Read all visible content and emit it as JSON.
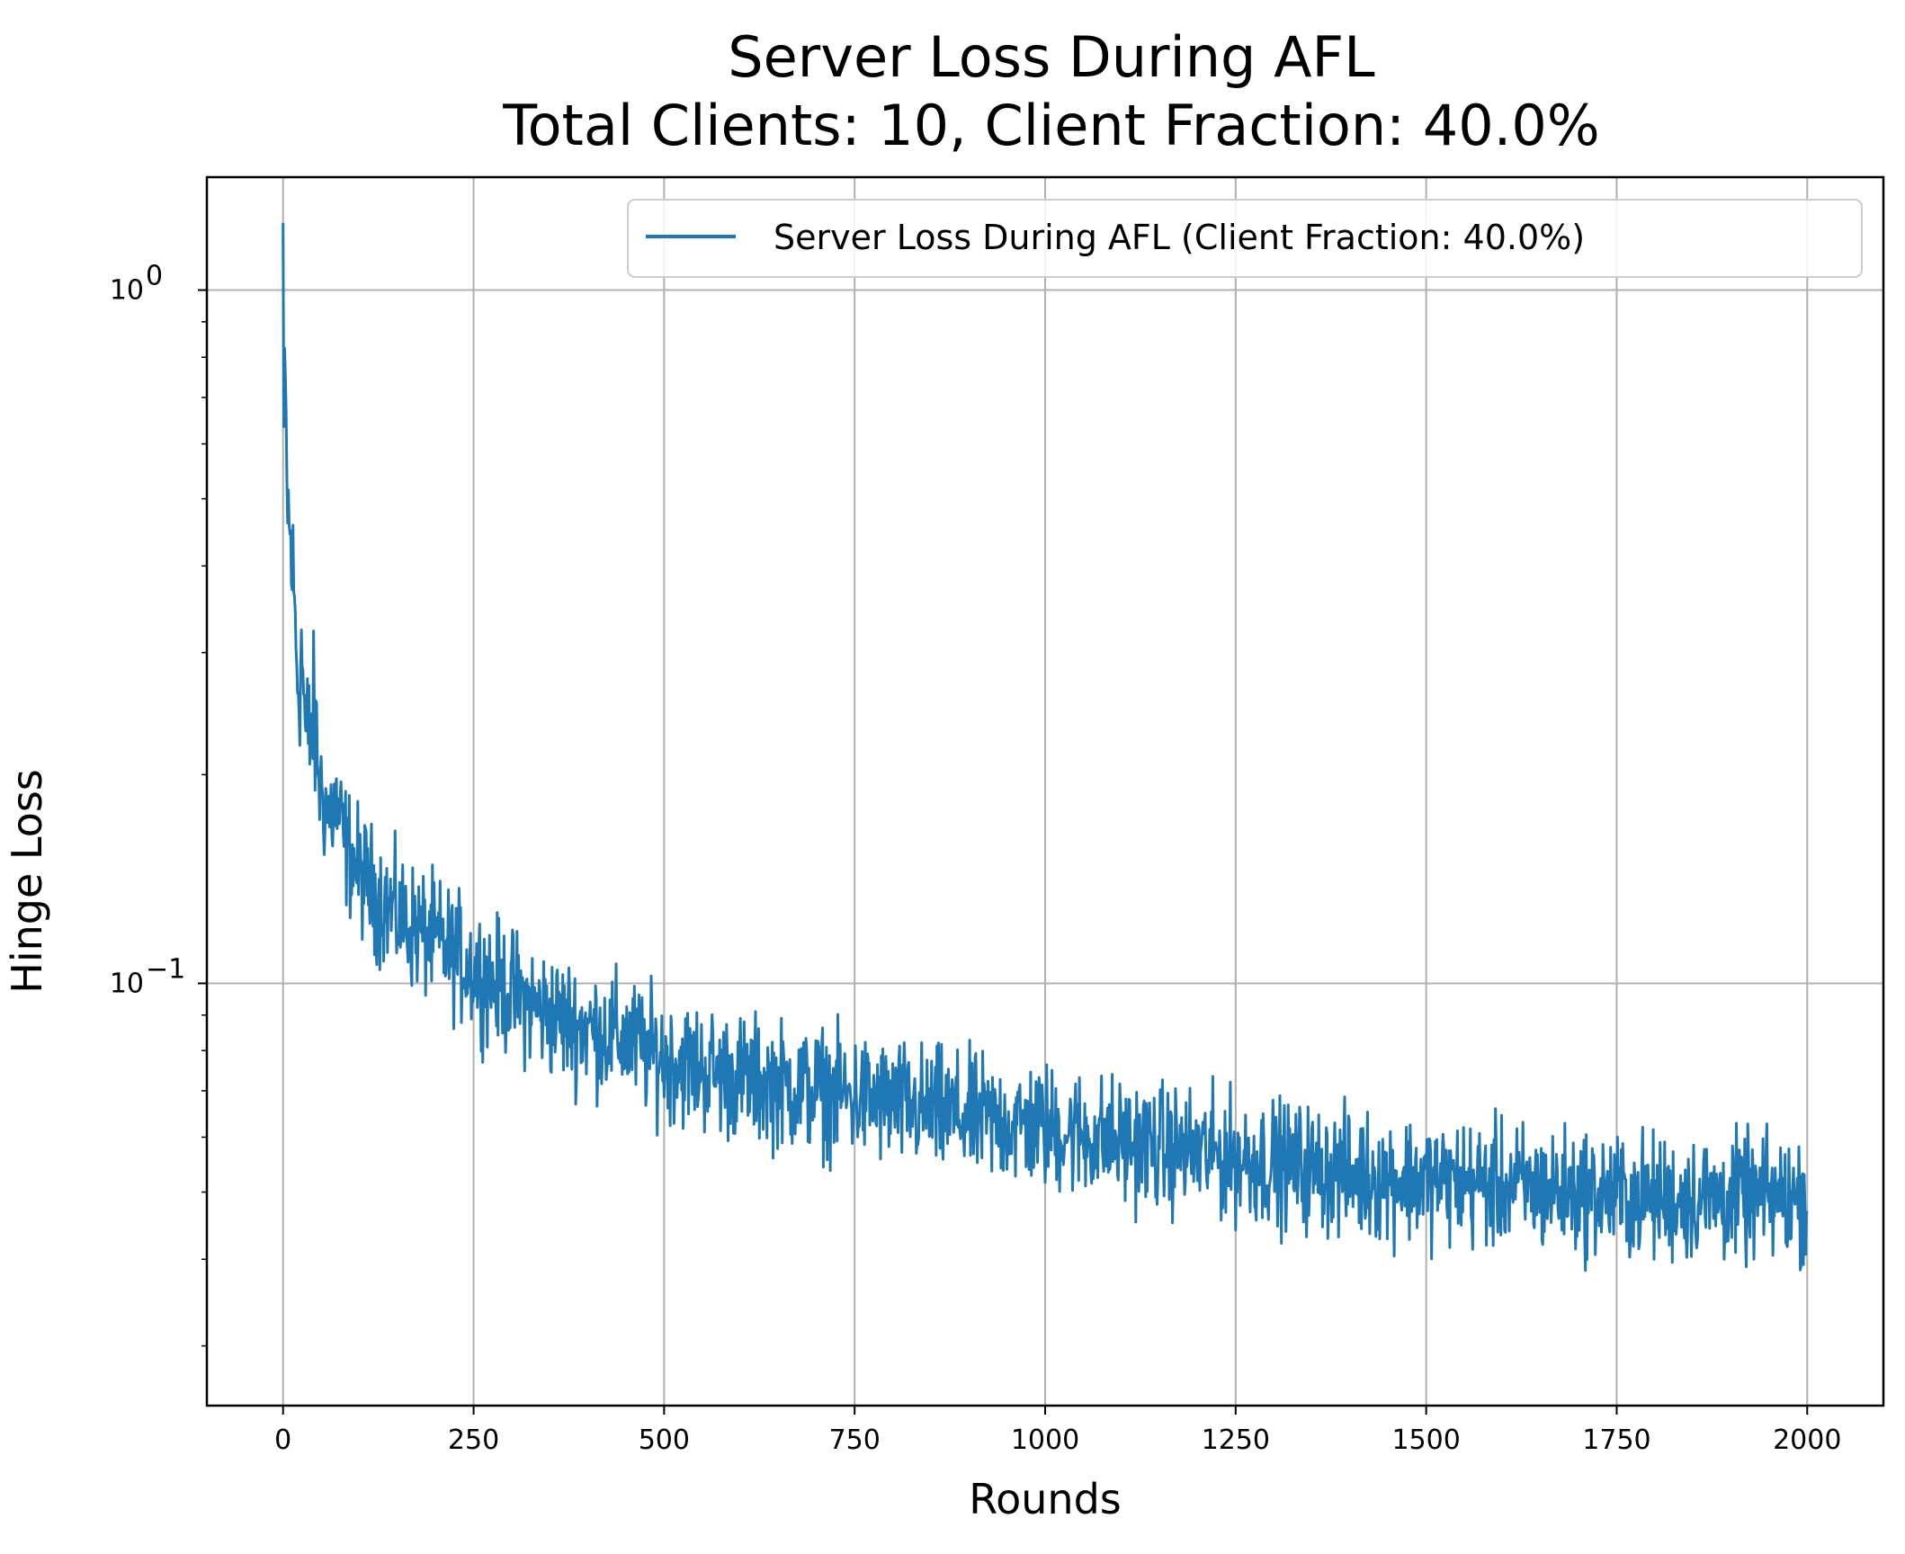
{
  "chart_data": {
    "type": "line",
    "title": "Server Loss During AFL",
    "subtitle": "Total Clients: 10, Client Fraction: 40.0%",
    "xlabel": "Rounds",
    "ylabel": "Hinge Loss",
    "xlim": [
      -100,
      2100
    ],
    "ylim": [
      0.0246,
      1.455
    ],
    "yscale": "log",
    "grid": true,
    "legend_position": "top-right",
    "x_ticks": [
      0,
      250,
      500,
      750,
      1000,
      1250,
      1500,
      1750,
      2000
    ],
    "y_ticks": [
      {
        "value": 1.0,
        "base": "10",
        "exp": "0"
      },
      {
        "value": 0.1,
        "base": "10",
        "exp": "−1"
      }
    ],
    "line_color": "#1f77b4",
    "series": [
      {
        "name": "Server Loss During AFL (Client Fraction: 40.0%)",
        "rounds": 2001,
        "points": [
          [
            0,
            1.25
          ],
          [
            1,
            0.62
          ],
          [
            3,
            0.7
          ],
          [
            5,
            0.52
          ],
          [
            8,
            0.45
          ],
          [
            12,
            0.4
          ],
          [
            16,
            0.33
          ],
          [
            20,
            0.27
          ],
          [
            25,
            0.3
          ],
          [
            30,
            0.22
          ],
          [
            40,
            0.24
          ],
          [
            50,
            0.19
          ],
          [
            60,
            0.175
          ],
          [
            70,
            0.18
          ],
          [
            80,
            0.16
          ],
          [
            100,
            0.145
          ],
          [
            120,
            0.135
          ],
          [
            150,
            0.125
          ],
          [
            200,
            0.115
          ],
          [
            250,
            0.105
          ],
          [
            300,
            0.097
          ],
          [
            350,
            0.09
          ],
          [
            400,
            0.086
          ],
          [
            450,
            0.083
          ],
          [
            500,
            0.078
          ],
          [
            600,
            0.073
          ],
          [
            700,
            0.07
          ],
          [
            800,
            0.067
          ],
          [
            900,
            0.064
          ],
          [
            1000,
            0.062
          ],
          [
            1100,
            0.059
          ],
          [
            1200,
            0.057
          ],
          [
            1300,
            0.055
          ],
          [
            1400,
            0.053
          ],
          [
            1500,
            0.052
          ],
          [
            1600,
            0.051
          ],
          [
            1700,
            0.05
          ],
          [
            1800,
            0.049
          ],
          [
            1900,
            0.049
          ],
          [
            2000,
            0.049
          ]
        ],
        "min_observed": 0.0285,
        "max_observed": 1.25
      }
    ]
  }
}
